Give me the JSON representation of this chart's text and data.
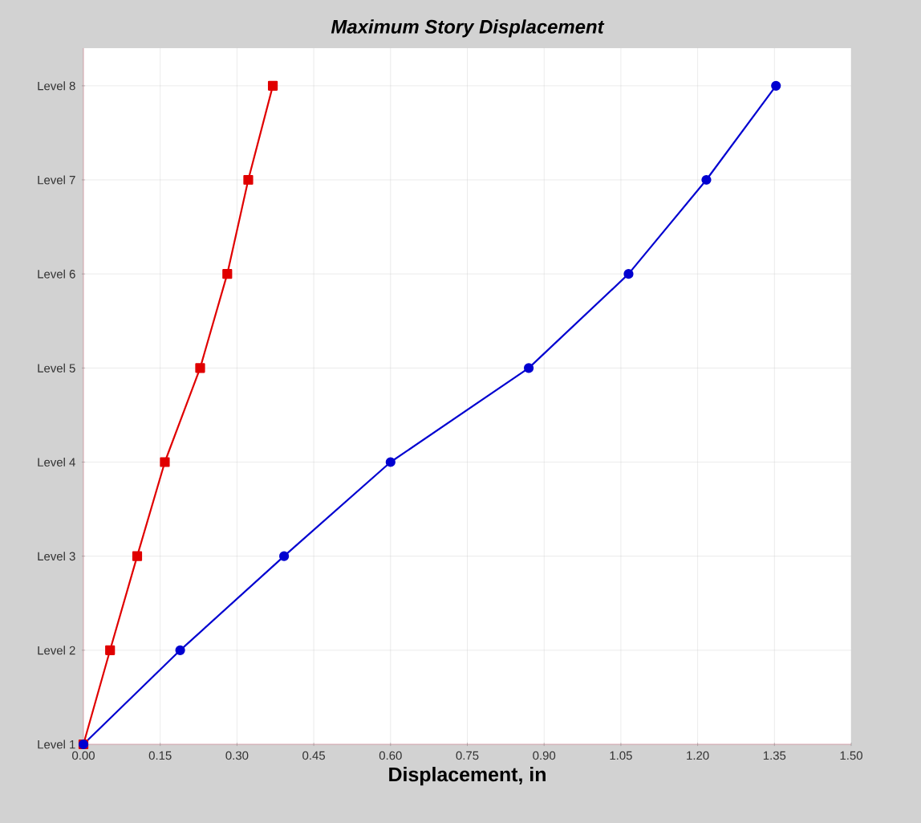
{
  "chart_data": {
    "type": "line",
    "orientation": "horizontal",
    "title": "Maximum Story Displacement",
    "xlabel": "Displacement, in",
    "categories": [
      "Level 8",
      "Level 7",
      "Level 6",
      "Level 5",
      "Level 4",
      "Level 3",
      "Level 2",
      "Level 1"
    ],
    "xlim": [
      0,
      1.5
    ],
    "xticks": [
      {
        "value": 0,
        "label": "0.00"
      },
      0.15,
      {
        "value": 0.3,
        "label": "0.30"
      },
      0.45,
      {
        "value": 0.6,
        "label": "0.60"
      },
      0.75,
      {
        "value": 0.9,
        "label": "0.90"
      },
      1.05,
      {
        "value": 1.2,
        "label": "1.20"
      },
      1.35,
      {
        "value": 1.5,
        "label": "1.50"
      }
    ],
    "grid": true,
    "line_style": "solid",
    "series": [
      {
        "color": "#e00000",
        "marker": "square",
        "values": [
          0.37,
          0.322,
          0.281,
          0.228,
          0.159,
          0.105,
          0.052,
          0
        ]
      },
      {
        "color": "#0000d0",
        "marker": "circle",
        "values": [
          1.353,
          1.217,
          1.065,
          0.87,
          0.6,
          0.392,
          0.189,
          0
        ]
      }
    ]
  }
}
